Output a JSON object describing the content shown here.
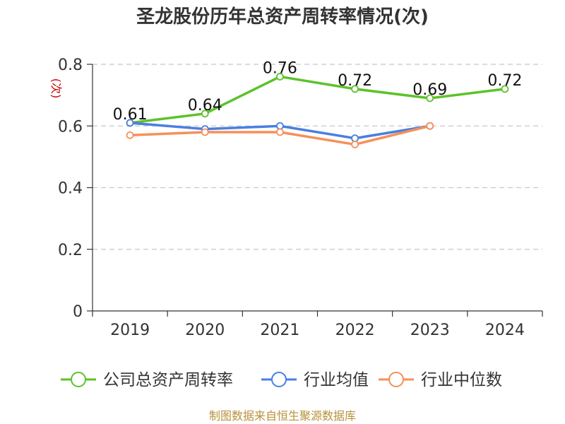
{
  "chart_data": {
    "type": "line",
    "title": "圣龙股份历年总资产周转率情况(次)",
    "ylabel": "(次)",
    "xlabel": "",
    "categories": [
      "2019",
      "2020",
      "2021",
      "2022",
      "2023",
      "2024"
    ],
    "ylim": [
      0,
      0.8
    ],
    "yticks": [
      0,
      0.2,
      0.4,
      0.6,
      0.8
    ],
    "ytick_labels": [
      "0",
      "0.2",
      "0.4",
      "0.6",
      "0.8"
    ],
    "grid": true,
    "legend_position": "bottom",
    "series": [
      {
        "name": "公司总资产周转率",
        "color": "#5cc22a",
        "values": [
          0.61,
          0.64,
          0.76,
          0.72,
          0.69,
          0.72
        ],
        "labels": [
          "0.61",
          "0.64",
          "0.76",
          "0.72",
          "0.69",
          "0.72"
        ]
      },
      {
        "name": "行业均值",
        "color": "#4a7fe0",
        "values": [
          0.61,
          0.59,
          0.6,
          0.56,
          0.6,
          null
        ]
      },
      {
        "name": "行业中位数",
        "color": "#f5905a",
        "values": [
          0.57,
          0.58,
          0.58,
          0.54,
          0.6,
          null
        ]
      }
    ],
    "source": "制图数据来自恒生聚源数据库"
  }
}
